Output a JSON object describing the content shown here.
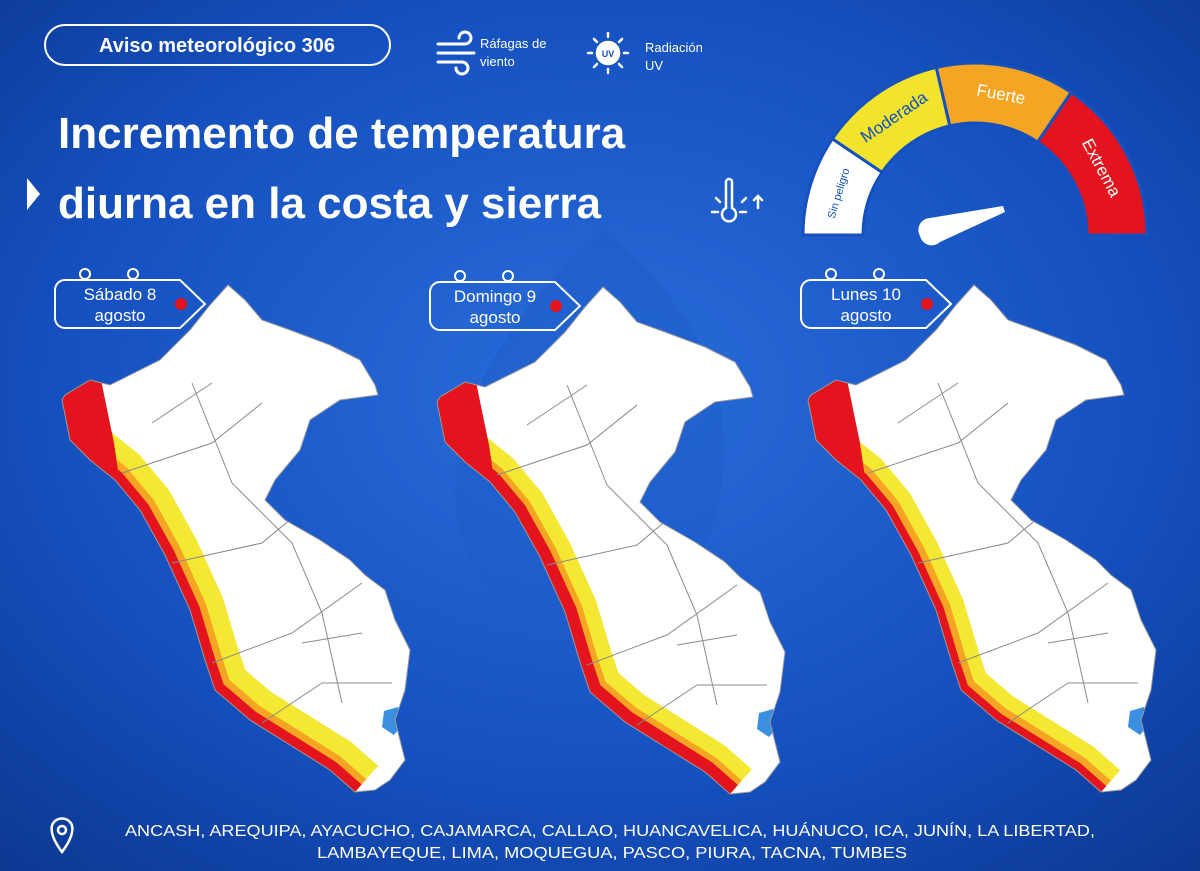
{
  "header": {
    "badge": "Aviso meteorológico 306",
    "icons": [
      {
        "label": [
          "Ráfagas de",
          "viento"
        ]
      },
      {
        "label": [
          "Radiación",
          "UV"
        ],
        "badge": "UV"
      }
    ]
  },
  "title": [
    "Incremento de temperatura",
    "diurna en la costa y sierra"
  ],
  "gauge": {
    "levels": [
      "Sin peligro",
      "Moderada",
      "Fuerte",
      "Extrema"
    ]
  },
  "maps": [
    {
      "day": "Sábado 8",
      "month": "agosto"
    },
    {
      "day": "Domingo 9",
      "month": "agosto"
    },
    {
      "day": "Lunes 10",
      "month": "agosto"
    }
  ],
  "regions": [
    "ANCASH, AREQUIPA, AYACUCHO, CAJAMARCA, CALLAO, HUANCAVELICA, HUÁNUCO, ICA, JUNÍN, LA LIBERTAD,",
    "LAMBAYEQUE, LIMA, MOQUEGUA, PASCO, PIURA, TACNA, TUMBES"
  ]
}
